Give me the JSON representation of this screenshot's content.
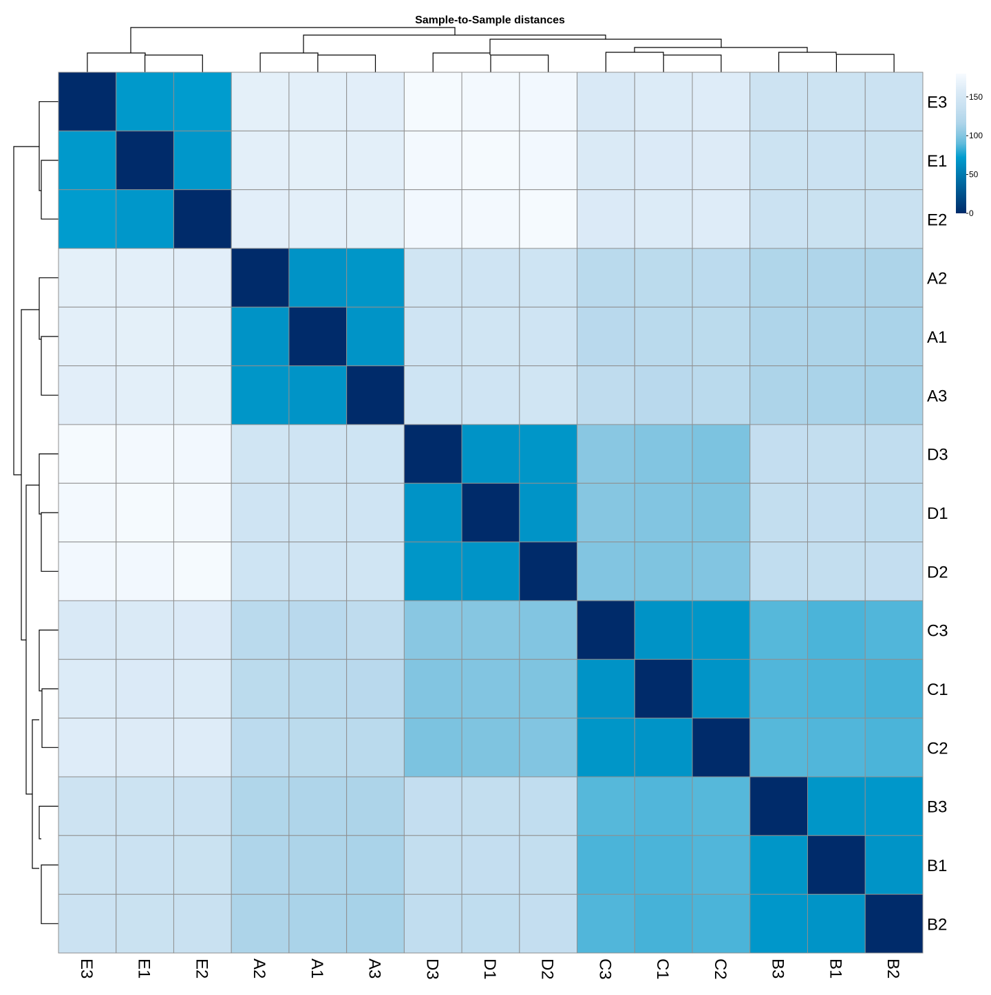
{
  "chart_data": {
    "type": "heatmap",
    "title": "Sample-to-Sample distances",
    "rows": [
      "E3",
      "E1",
      "E2",
      "A2",
      "A1",
      "A3",
      "D3",
      "D1",
      "D2",
      "C3",
      "C1",
      "C2",
      "B3",
      "B1",
      "B2"
    ],
    "columns": [
      "E3",
      "E1",
      "E2",
      "A2",
      "A1",
      "A3",
      "D3",
      "D1",
      "D2",
      "C3",
      "C1",
      "C2",
      "B3",
      "B1",
      "B2"
    ],
    "values": [
      [
        0,
        70,
        72,
        165,
        164,
        163,
        178,
        177,
        176,
        155,
        158,
        160,
        143,
        142,
        141
      ],
      [
        70,
        0,
        69,
        164,
        165,
        164,
        177,
        178,
        176,
        156,
        157,
        159,
        142,
        141,
        140
      ],
      [
        72,
        69,
        0,
        163,
        164,
        165,
        176,
        177,
        178,
        157,
        158,
        160,
        141,
        140,
        139
      ],
      [
        165,
        164,
        163,
        0,
        66,
        68,
        146,
        145,
        144,
        126,
        127,
        128,
        118,
        117,
        116
      ],
      [
        164,
        165,
        164,
        66,
        0,
        67,
        145,
        146,
        145,
        125,
        126,
        127,
        117,
        116,
        115
      ],
      [
        163,
        164,
        165,
        68,
        67,
        0,
        144,
        145,
        146,
        130,
        125,
        126,
        116,
        115,
        114
      ],
      [
        178,
        177,
        176,
        146,
        145,
        144,
        0,
        66,
        68,
        102,
        100,
        98,
        134,
        133,
        132
      ],
      [
        177,
        178,
        177,
        145,
        146,
        145,
        66,
        0,
        67,
        101,
        100,
        99,
        133,
        134,
        131
      ],
      [
        176,
        176,
        178,
        144,
        145,
        146,
        68,
        67,
        0,
        100,
        99,
        100,
        132,
        133,
        134
      ],
      [
        155,
        156,
        157,
        126,
        125,
        130,
        102,
        101,
        100,
        0,
        66,
        68,
        88,
        86,
        87
      ],
      [
        158,
        157,
        158,
        127,
        126,
        125,
        100,
        100,
        99,
        66,
        0,
        67,
        87,
        86,
        85
      ],
      [
        160,
        159,
        160,
        128,
        127,
        126,
        98,
        99,
        100,
        68,
        67,
        0,
        88,
        87,
        86
      ],
      [
        143,
        142,
        141,
        118,
        117,
        116,
        134,
        133,
        132,
        88,
        87,
        88,
        0,
        68,
        69
      ],
      [
        142,
        141,
        140,
        117,
        116,
        115,
        133,
        134,
        133,
        86,
        86,
        87,
        68,
        0,
        67
      ],
      [
        141,
        140,
        139,
        116,
        115,
        114,
        132,
        131,
        134,
        87,
        85,
        86,
        69,
        67,
        0
      ]
    ],
    "colorbar": {
      "min": 0,
      "max": 180,
      "ticks": [
        0,
        50,
        100,
        150
      ],
      "low_color": "#002b6a",
      "high_color": "#f7fbff"
    },
    "dendrogram": "hierarchical clustering on rows and columns"
  }
}
